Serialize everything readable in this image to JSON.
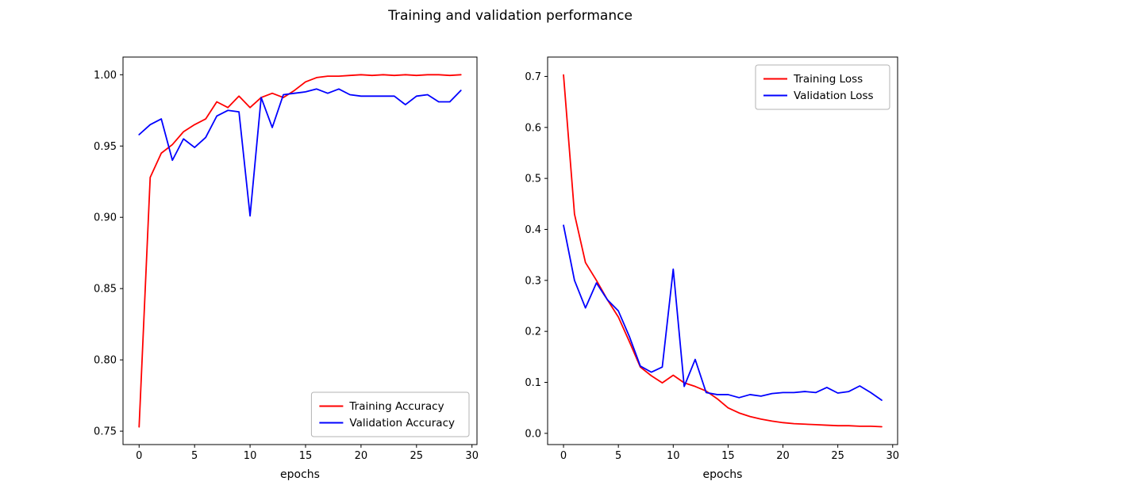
{
  "figure": {
    "title": "Training and validation performance",
    "background": "#ffffff",
    "axis_color": "#000000",
    "text_color": "#000000"
  },
  "chart_data": [
    {
      "type": "line",
      "name": "accuracy",
      "title": "",
      "xlabel": "epochs",
      "ylabel": "",
      "grid": false,
      "legend_position": "lower-right",
      "xlim": [
        -1.45,
        30.45
      ],
      "ylim": [
        0.7406,
        1.0124
      ],
      "xticks": [
        0,
        5,
        10,
        15,
        20,
        25,
        30
      ],
      "xtick_labels": [
        "0",
        "5",
        "10",
        "15",
        "20",
        "25",
        "30"
      ],
      "yticks": [
        0.75,
        0.8,
        0.85,
        0.9,
        0.95,
        1.0
      ],
      "ytick_labels": [
        "0.75",
        "0.80",
        "0.85",
        "0.90",
        "0.95",
        "1.00"
      ],
      "x": [
        0,
        1,
        2,
        3,
        4,
        5,
        6,
        7,
        8,
        9,
        10,
        11,
        12,
        13,
        14,
        15,
        16,
        17,
        18,
        19,
        20,
        21,
        22,
        23,
        24,
        25,
        26,
        27,
        28,
        29
      ],
      "series": [
        {
          "name": "Training Accuracy",
          "color": "#ff0000",
          "values": [
            0.753,
            0.928,
            0.945,
            0.951,
            0.96,
            0.965,
            0.969,
            0.981,
            0.977,
            0.985,
            0.977,
            0.984,
            0.987,
            0.984,
            0.989,
            0.995,
            0.998,
            0.999,
            0.999,
            0.9995,
            1.0,
            0.9995,
            1.0,
            0.9995,
            1.0,
            0.9995,
            1.0,
            1.0,
            0.9995,
            1.0
          ]
        },
        {
          "name": "Validation Accuracy",
          "color": "#0000ff",
          "values": [
            0.958,
            0.965,
            0.969,
            0.94,
            0.955,
            0.949,
            0.956,
            0.971,
            0.975,
            0.974,
            0.901,
            0.984,
            0.963,
            0.986,
            0.987,
            0.988,
            0.99,
            0.987,
            0.99,
            0.986,
            0.985,
            0.985,
            0.985,
            0.985,
            0.979,
            0.985,
            0.986,
            0.981,
            0.981,
            0.989
          ]
        }
      ]
    },
    {
      "type": "line",
      "name": "loss",
      "title": "",
      "xlabel": "epochs",
      "ylabel": "",
      "grid": false,
      "legend_position": "upper-right",
      "xlim": [
        -1.45,
        30.45
      ],
      "ylim": [
        -0.022,
        0.738
      ],
      "xticks": [
        0,
        5,
        10,
        15,
        20,
        25,
        30
      ],
      "xtick_labels": [
        "0",
        "5",
        "10",
        "15",
        "20",
        "25",
        "30"
      ],
      "yticks": [
        0.0,
        0.1,
        0.2,
        0.3,
        0.4,
        0.5,
        0.6,
        0.7
      ],
      "ytick_labels": [
        "0.0",
        "0.1",
        "0.2",
        "0.3",
        "0.4",
        "0.5",
        "0.6",
        "0.7"
      ],
      "x": [
        0,
        1,
        2,
        3,
        4,
        5,
        6,
        7,
        8,
        9,
        10,
        11,
        12,
        13,
        14,
        15,
        16,
        17,
        18,
        19,
        20,
        21,
        22,
        23,
        24,
        25,
        26,
        27,
        28,
        29
      ],
      "series": [
        {
          "name": "Training Loss",
          "color": "#ff0000",
          "values": [
            0.703,
            0.43,
            0.335,
            0.3,
            0.262,
            0.228,
            0.18,
            0.13,
            0.113,
            0.099,
            0.114,
            0.099,
            0.092,
            0.083,
            0.068,
            0.05,
            0.04,
            0.033,
            0.028,
            0.024,
            0.021,
            0.019,
            0.018,
            0.017,
            0.016,
            0.015,
            0.015,
            0.014,
            0.014,
            0.013
          ]
        },
        {
          "name": "Validation Loss",
          "color": "#0000ff",
          "values": [
            0.408,
            0.3,
            0.246,
            0.295,
            0.262,
            0.24,
            0.19,
            0.132,
            0.12,
            0.13,
            0.322,
            0.092,
            0.145,
            0.08,
            0.076,
            0.076,
            0.07,
            0.076,
            0.073,
            0.078,
            0.08,
            0.08,
            0.082,
            0.08,
            0.09,
            0.079,
            0.082,
            0.093,
            0.08,
            0.065
          ]
        }
      ]
    }
  ]
}
